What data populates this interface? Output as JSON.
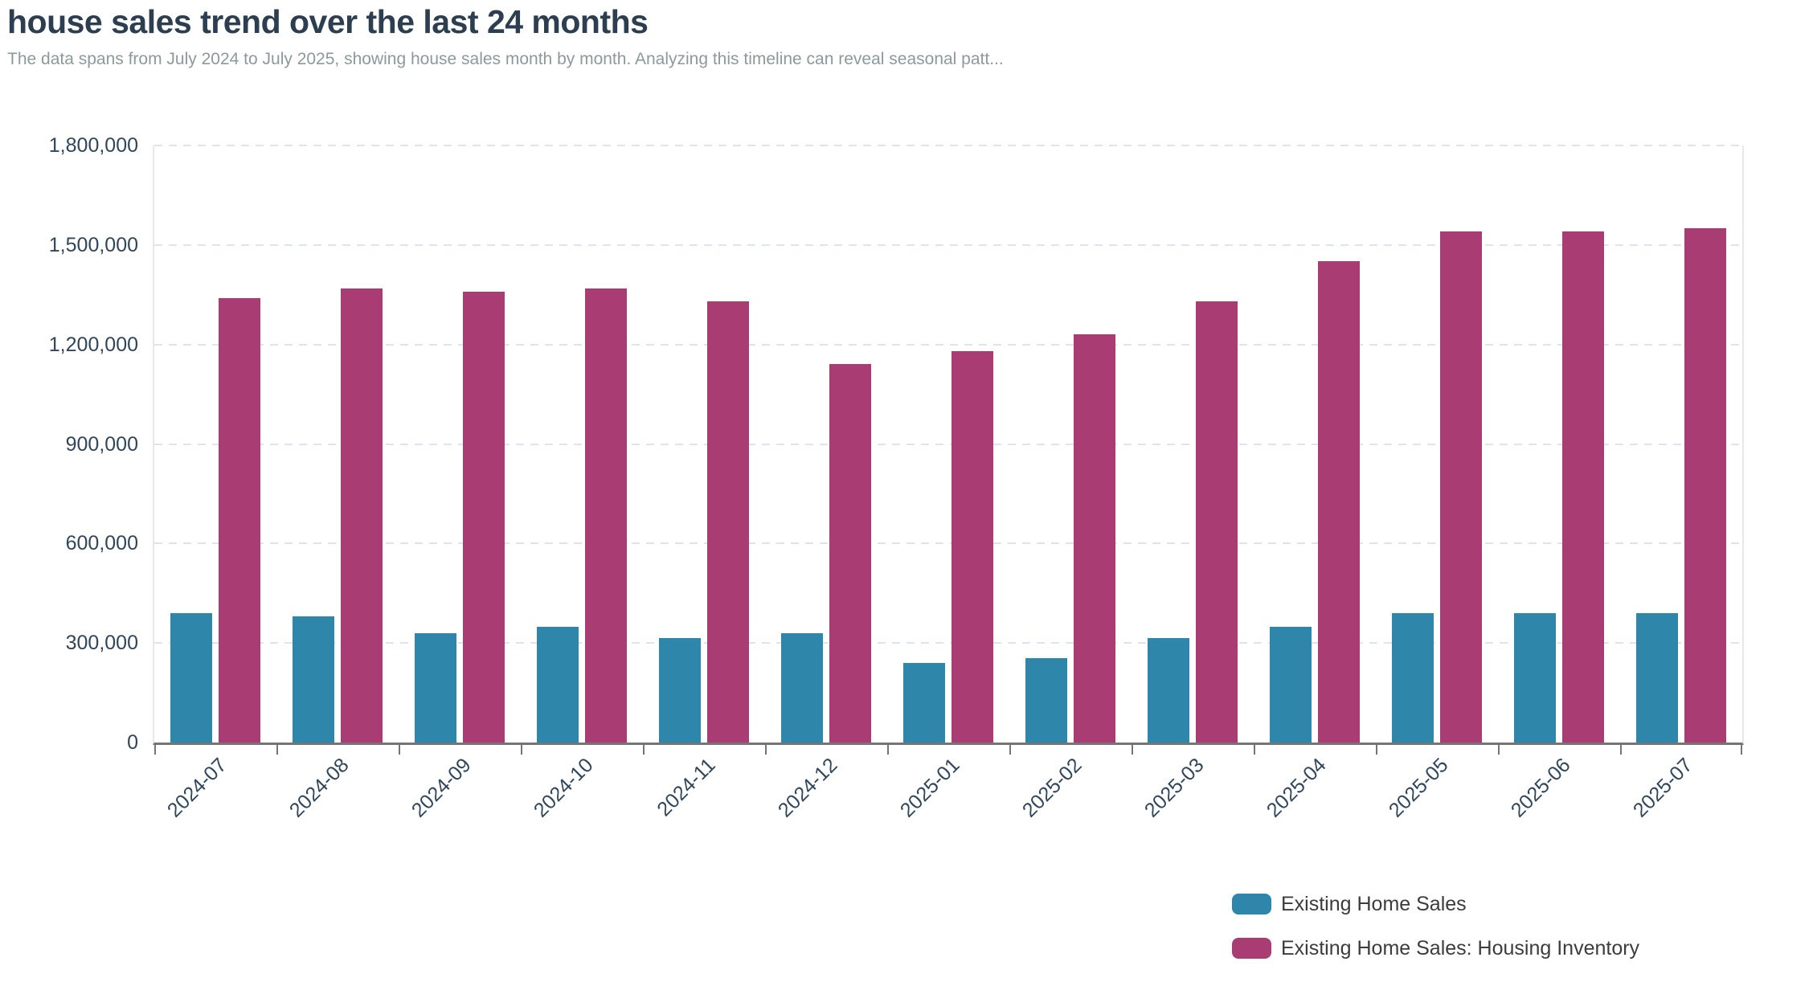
{
  "header": {
    "title": "house sales trend over the last 24 months",
    "subtitle": "The data spans from July 2024 to July 2025, showing house sales month by month. Analyzing this timeline can reveal seasonal patt..."
  },
  "colors": {
    "title_text": "#2c3e50",
    "subtitle_text": "#8d999b",
    "axis_label_text": "#31465a",
    "axis_line": "#757575",
    "gridline": "#dde3f0",
    "plot_border": "#e8e8e8",
    "legend_text": "#3c3c3c",
    "series_blue": "#2f86ab",
    "series_magenta": "#a93d73"
  },
  "chart_data": {
    "type": "bar",
    "title": "house sales trend over the last 24 months",
    "xlabel": "",
    "ylabel": "",
    "grid": true,
    "gridline_style": "dashed",
    "legend_position": "bottom-right",
    "ylim": [
      0,
      1800000
    ],
    "yticks": [
      0,
      300000,
      600000,
      900000,
      1200000,
      1500000,
      1800000
    ],
    "ytick_labels": [
      "0",
      "300,000",
      "600,000",
      "900,000",
      "1,200,000",
      "1,500,000",
      "1,800,000"
    ],
    "categories": [
      "2024-07",
      "2024-08",
      "2024-09",
      "2024-10",
      "2024-11",
      "2024-12",
      "2025-01",
      "2025-02",
      "2025-03",
      "2025-04",
      "2025-05",
      "2025-06",
      "2025-07"
    ],
    "series": [
      {
        "name": "Existing Home Sales",
        "color": "#2f86ab",
        "values": [
          390000,
          380000,
          330000,
          350000,
          315000,
          330000,
          240000,
          255000,
          315000,
          350000,
          390000,
          390000,
          390000
        ]
      },
      {
        "name": "Existing Home Sales: Housing Inventory",
        "color": "#a93d73",
        "values": [
          1340000,
          1370000,
          1360000,
          1370000,
          1330000,
          1140000,
          1180000,
          1230000,
          1330000,
          1450000,
          1540000,
          1540000,
          1550000
        ]
      }
    ]
  }
}
